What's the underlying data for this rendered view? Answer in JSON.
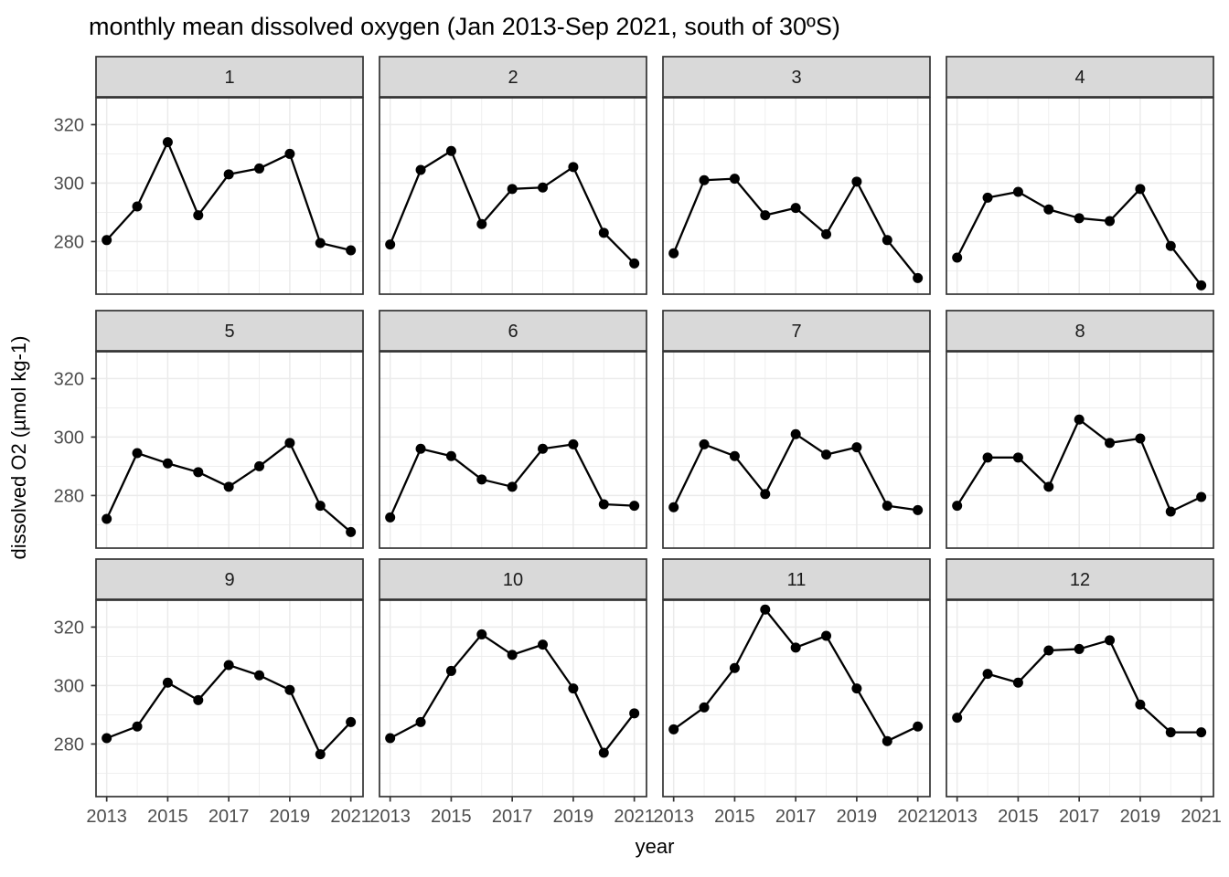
{
  "title": "monthly mean dissolved oxygen (Jan 2013-Sep 2021, south of 30ºS)",
  "x_axis_title": "year",
  "y_axis_title": "dissolved O2 (µmol kg-1)",
  "chart_data": {
    "type": "line",
    "facet_variable": "month",
    "x": [
      2013,
      2014,
      2015,
      2016,
      2017,
      2018,
      2019,
      2020,
      2021
    ],
    "x_major_ticks": [
      2013,
      2015,
      2017,
      2019,
      2021
    ],
    "x_tick_labels": [
      "2013",
      "2015",
      "2017",
      "2019",
      "2021"
    ],
    "x_minor_breaks": [
      2014,
      2016,
      2018,
      2020
    ],
    "y_major_ticks": [
      280,
      300,
      320
    ],
    "y_tick_labels": [
      "280",
      "300",
      "320"
    ],
    "y_minor_breaks": [
      270,
      290,
      310
    ],
    "ylim": [
      262.0,
      329.2
    ],
    "xlim": [
      2012.65,
      2021.4
    ],
    "grid": "major+minor",
    "legend_position": "none",
    "title": "monthly mean dissolved oxygen (Jan 2013-Sep 2021, south of 30ºS)",
    "xlabel": "year",
    "ylabel": "dissolved O2 (µmol kg-1)",
    "facets": [
      {
        "label": "1",
        "values": [
          280.5,
          292,
          314,
          289,
          303,
          305,
          310,
          279.5,
          277
        ]
      },
      {
        "label": "2",
        "values": [
          279,
          304.5,
          311,
          286,
          298,
          298.5,
          305.5,
          283,
          272.5
        ]
      },
      {
        "label": "3",
        "values": [
          276,
          301,
          301.5,
          289,
          291.5,
          282.5,
          300.5,
          280.5,
          267.5
        ]
      },
      {
        "label": "4",
        "values": [
          274.5,
          295,
          297,
          291,
          288,
          287,
          298,
          278.5,
          265
        ]
      },
      {
        "label": "5",
        "values": [
          272,
          294.5,
          291,
          288,
          283,
          290,
          298,
          276.5,
          267.5
        ]
      },
      {
        "label": "6",
        "values": [
          272.5,
          296,
          293.5,
          285.5,
          283,
          296,
          297.5,
          277,
          276.5
        ]
      },
      {
        "label": "7",
        "values": [
          276,
          297.5,
          293.5,
          280.5,
          301,
          294,
          296.5,
          276.5,
          275
        ]
      },
      {
        "label": "8",
        "values": [
          276.5,
          293,
          293,
          283,
          306,
          298,
          299.5,
          274.5,
          279.5
        ]
      },
      {
        "label": "9",
        "values": [
          282,
          286,
          301,
          295,
          307,
          303.5,
          298.5,
          276.5,
          287.5
        ]
      },
      {
        "label": "10",
        "values": [
          282,
          287.5,
          305,
          317.5,
          310.5,
          314,
          299,
          277,
          290.5
        ]
      },
      {
        "label": "11",
        "values": [
          285,
          292.5,
          306,
          326,
          313,
          317,
          299,
          281,
          286
        ]
      },
      {
        "label": "12",
        "values": [
          289,
          304,
          301,
          312,
          312.5,
          315.5,
          293.5,
          284,
          284
        ]
      }
    ],
    "colors": {
      "series": "#000000",
      "panel_background": "#ffffff",
      "panel_border": "#333333",
      "grid_line": "#ebebeb",
      "strip_background": "#d9d9d9",
      "strip_border": "#333333",
      "strip_text": "#1a1a1a",
      "tick_text": "#4d4d4d",
      "tick_mark": "#333333",
      "title_text": "#000000"
    }
  }
}
